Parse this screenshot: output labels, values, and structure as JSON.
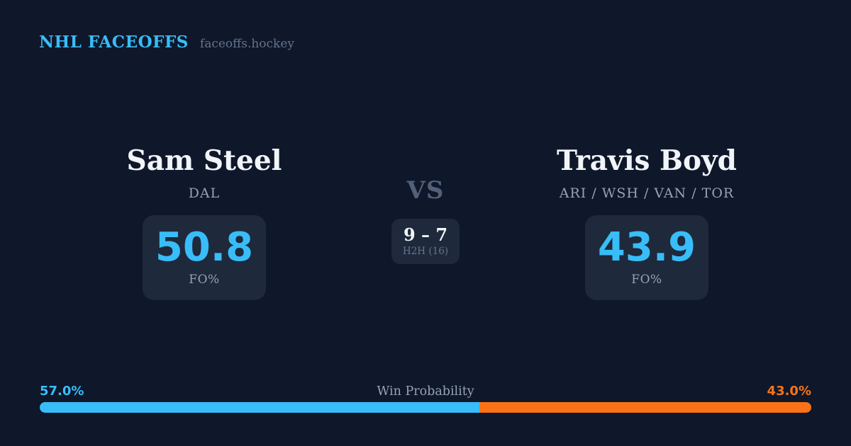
{
  "header": {
    "brand": "NHL FACEOFFS",
    "site": "faceoffs.hockey"
  },
  "matchup": {
    "vs_label": "VS",
    "h2h": {
      "record": "9 – 7",
      "label": "H2H (16)"
    },
    "players": [
      {
        "name": "Sam Steel",
        "teams": "DAL",
        "stat_value": "50.8",
        "stat_label": "FO%"
      },
      {
        "name": "Travis Boyd",
        "teams": "ARI / WSH / VAN / TOR",
        "stat_value": "43.9",
        "stat_label": "FO%"
      }
    ]
  },
  "win_probability": {
    "label": "Win Probability",
    "left": {
      "pct_label": "57.0%",
      "value": 57.0,
      "color": "#38bdf8"
    },
    "right": {
      "pct_label": "43.0%",
      "value": 43.0,
      "color": "#f97316"
    }
  },
  "colors": {
    "background": "#0f172a",
    "card": "#1e293b",
    "accent_blue": "#38bdf8",
    "accent_orange": "#f97316",
    "text_primary": "#f1f5f9",
    "text_muted": "#94a3b8",
    "text_dim": "#64748b",
    "vs_text": "#526079"
  }
}
